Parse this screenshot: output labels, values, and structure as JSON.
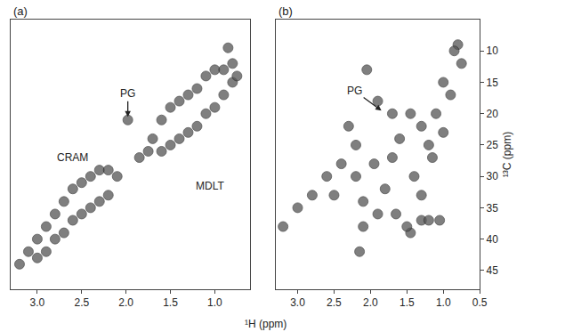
{
  "chart_data": [
    {
      "type": "scatter",
      "title": "(a)",
      "xlabel": "¹H (ppm)",
      "color": "#555555",
      "marker": "circle",
      "tick_labels": "x",
      "xlim": [
        3.3,
        0.6
      ],
      "xticks": [
        {
          "value": 3.0,
          "label": "3.0"
        },
        2.5,
        {
          "value": 2.0,
          "label": "2.0"
        },
        1.5,
        {
          "value": 1.0,
          "label": "1.0"
        }
      ],
      "ylim": [
        48,
        5
      ],
      "x": [
        3.2,
        3.1,
        3.0,
        3.0,
        2.9,
        2.9,
        2.8,
        2.8,
        2.7,
        2.7,
        2.6,
        2.6,
        2.5,
        2.5,
        2.4,
        2.4,
        2.3,
        2.3,
        2.2,
        2.2,
        2.1,
        1.85,
        1.75,
        1.98,
        1.7,
        1.6,
        1.6,
        1.5,
        1.5,
        1.4,
        1.4,
        1.3,
        1.3,
        1.2,
        1.2,
        1.1,
        1.1,
        1.0,
        1.0,
        0.9,
        0.9,
        0.8,
        0.8,
        0.85,
        0.75
      ],
      "y": [
        44,
        42,
        40,
        43,
        38,
        42,
        36,
        40,
        34,
        39,
        32,
        37,
        31,
        36,
        30,
        35,
        29,
        34,
        29,
        33,
        30,
        27,
        26,
        21,
        24,
        21,
        26,
        19,
        25,
        18,
        24,
        17,
        23,
        16,
        22,
        14,
        20,
        13,
        19,
        13,
        17,
        12,
        15,
        9.5,
        14
      ],
      "annotations": [
        {
          "text": "CRAM",
          "x": 2.6,
          "y": 27,
          "arrow": false
        },
        {
          "text": "MDLT",
          "x": 1.05,
          "y": 31.5,
          "arrow": false
        },
        {
          "text": "PG",
          "x": 1.98,
          "y": 20.5,
          "arrow": true
        }
      ]
    },
    {
      "type": "scatter",
      "title": "(b)",
      "ylabel": "¹³C (ppm)",
      "color": "#555555",
      "marker": "circle",
      "xlim": [
        3.3,
        0.5
      ],
      "xticks": [
        {
          "value": 3.0,
          "label": "3.0"
        },
        2.5,
        {
          "value": 2.0,
          "label": "2.0"
        },
        1.5,
        {
          "value": 1.0,
          "label": "1.0"
        },
        0.5
      ],
      "ylim": [
        48,
        5
      ],
      "yticks": [
        10,
        15,
        20,
        25,
        30,
        35,
        40,
        45
      ],
      "x": [
        2.05,
        0.8,
        0.85,
        1.9,
        1.7,
        1.45,
        1.3,
        1.2,
        1.15,
        1.0,
        0.9,
        1.6,
        2.3,
        2.2,
        2.4,
        2.6,
        2.8,
        3.0,
        3.2,
        2.5,
        2.2,
        1.95,
        1.7,
        1.4,
        1.3,
        2.1,
        1.9,
        2.1,
        1.65,
        1.45,
        1.5,
        1.3,
        1.2,
        1.05,
        2.15,
        1.8,
        1.0,
        1.1,
        0.75
      ],
      "y": [
        13,
        9,
        10,
        18,
        20,
        20,
        22,
        25,
        27,
        23,
        17,
        24,
        22,
        25,
        28,
        30,
        33,
        35,
        38,
        33,
        30,
        28,
        27,
        30,
        33,
        34,
        36,
        38,
        36,
        39,
        38,
        37,
        37,
        37,
        42,
        32,
        15,
        20,
        12
      ],
      "annotations": [
        {
          "text": "PG",
          "x": 1.85,
          "y": 19.5,
          "arrow": true
        }
      ]
    }
  ]
}
